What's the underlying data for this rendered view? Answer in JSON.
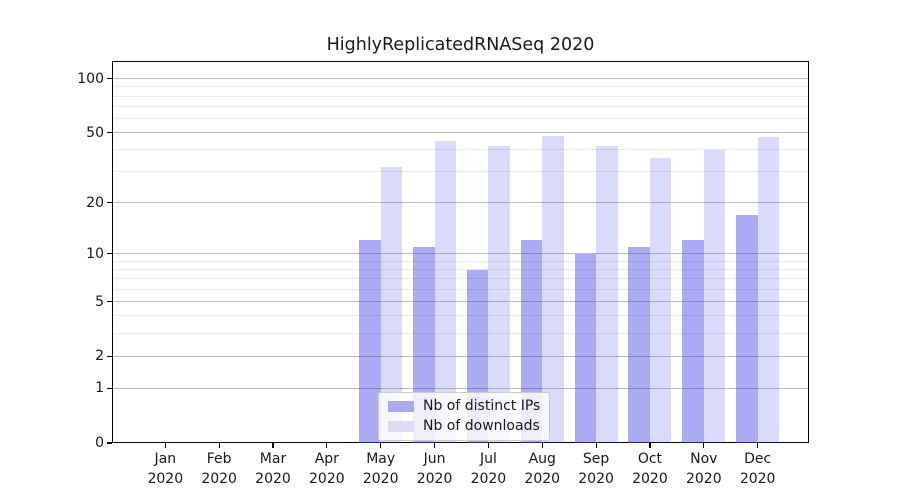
{
  "title": "HighlyReplicatedRNASeq 2020",
  "chart_data": {
    "type": "bar",
    "title": "HighlyReplicatedRNASeq 2020",
    "x_tick_months": [
      "Jan",
      "Feb",
      "Mar",
      "Apr",
      "May",
      "Jun",
      "Jul",
      "Aug",
      "Sep",
      "Oct",
      "Nov",
      "Dec"
    ],
    "x_tick_year": "2020",
    "y_axis": {
      "scale": "log10(1+value)",
      "major_ticks": [
        0,
        1,
        2,
        5,
        10,
        20,
        50,
        100
      ],
      "minor_gridlines": [
        3,
        4,
        6,
        7,
        8,
        9,
        30,
        40,
        60,
        70,
        80,
        90
      ],
      "ylim": [
        0,
        125
      ]
    },
    "series": [
      {
        "name": "Nb of distinct IPs",
        "color": "#5050e6",
        "alpha": 0.48,
        "swatch": "#a9a9f4",
        "values": [
          0,
          0,
          0,
          0,
          12,
          11,
          8,
          12,
          10,
          11,
          12,
          17
        ]
      },
      {
        "name": "Nb of downloads",
        "color": "#5050e6",
        "alpha": 0.21,
        "swatch": "#dcdcf9",
        "values": [
          0,
          0,
          0,
          0,
          32,
          45,
          42,
          48,
          42,
          36,
          40,
          47
        ]
      }
    ],
    "legend_position": "lower center",
    "grid": true
  },
  "colors": {
    "grid_major": "#bdbdbd",
    "grid_minor": "#e9e9e9",
    "spine": "#000000",
    "text": "#1a1a1a"
  }
}
